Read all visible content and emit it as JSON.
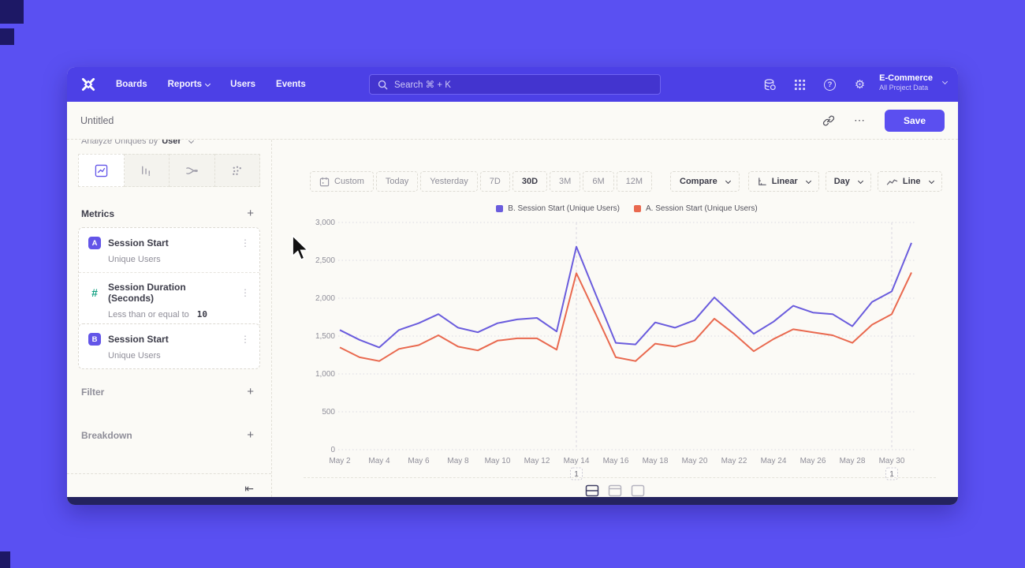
{
  "navbar": {
    "items": [
      "Boards",
      "Reports",
      "Users",
      "Events"
    ],
    "search_text": "Search   ⌘ + K",
    "help_symbol": "?",
    "gear_symbol": "⚙",
    "project_name": "E-Commerce",
    "project_subtitle": "All Project Data"
  },
  "titlebar": {
    "title": "Untitled",
    "menu_dots": "⋯",
    "save_label": "Save"
  },
  "sidebar": {
    "analyze_prefix": "Analyze Uniques by",
    "analyze_value": "User",
    "metrics_heading": "Metrics",
    "plus_symbol": "+",
    "metrics": [
      {
        "badge": "A",
        "title": "Session Start",
        "subtitle": "Unique Users",
        "menu": "⋮"
      },
      {
        "badge": "#",
        "title": "Session Duration (Seconds)",
        "subtitle": "Less than or equal to",
        "value": "10",
        "menu": "⋮"
      },
      {
        "badge": "B",
        "title": "Session Start",
        "subtitle": "Unique Users",
        "menu": "⋮"
      }
    ],
    "filter_label": "Filter",
    "breakdown_label": "Breakdown",
    "collapse_symbol": "⇤"
  },
  "toolbar": {
    "date_ranges": [
      "Custom",
      "Today",
      "Yesterday",
      "7D",
      "30D",
      "3M",
      "6M",
      "12M"
    ],
    "active_range": "30D",
    "compare_label": "Compare",
    "scale_label": "Linear",
    "interval_label": "Day",
    "chart_type_label": "Line"
  },
  "chart_data": {
    "type": "line",
    "x": [
      "May 2",
      "May 3",
      "May 4",
      "May 5",
      "May 6",
      "May 7",
      "May 8",
      "May 9",
      "May 10",
      "May 11",
      "May 12",
      "May 13",
      "May 14",
      "May 15",
      "May 16",
      "May 17",
      "May 18",
      "May 19",
      "May 20",
      "May 21",
      "May 22",
      "May 23",
      "May 24",
      "May 25",
      "May 26",
      "May 27",
      "May 28",
      "May 29",
      "May 30",
      "May 31"
    ],
    "xtick_every": 2,
    "ylim": [
      0,
      3000
    ],
    "yticks": [
      0,
      500,
      1000,
      1500,
      2000,
      2500,
      3000
    ],
    "ytick_labels": [
      "0",
      "500",
      "1,000",
      "1,500",
      "2,000",
      "2,500",
      "3,000"
    ],
    "grid": "horizontal-dotted",
    "legend_position": "top-center",
    "series": [
      {
        "name": "B. Session Start (Unique Users)",
        "color": "#6a5cdd",
        "values": [
          1580,
          1450,
          1350,
          1580,
          1670,
          1790,
          1610,
          1550,
          1670,
          1720,
          1740,
          1560,
          2680,
          2040,
          1410,
          1390,
          1680,
          1610,
          1710,
          2010,
          1770,
          1530,
          1690,
          1900,
          1810,
          1790,
          1630,
          1950,
          2090,
          2730
        ]
      },
      {
        "name": "A. Session Start (Unique Users)",
        "color": "#e9694f",
        "values": [
          1350,
          1220,
          1170,
          1330,
          1380,
          1510,
          1360,
          1310,
          1440,
          1470,
          1470,
          1320,
          2330,
          1780,
          1220,
          1170,
          1400,
          1360,
          1440,
          1730,
          1530,
          1300,
          1460,
          1590,
          1550,
          1510,
          1410,
          1650,
          1790,
          2340
        ]
      }
    ],
    "annotations": [
      {
        "x": "May 14",
        "label": "1"
      },
      {
        "x": "May 30",
        "label": "1"
      }
    ]
  }
}
